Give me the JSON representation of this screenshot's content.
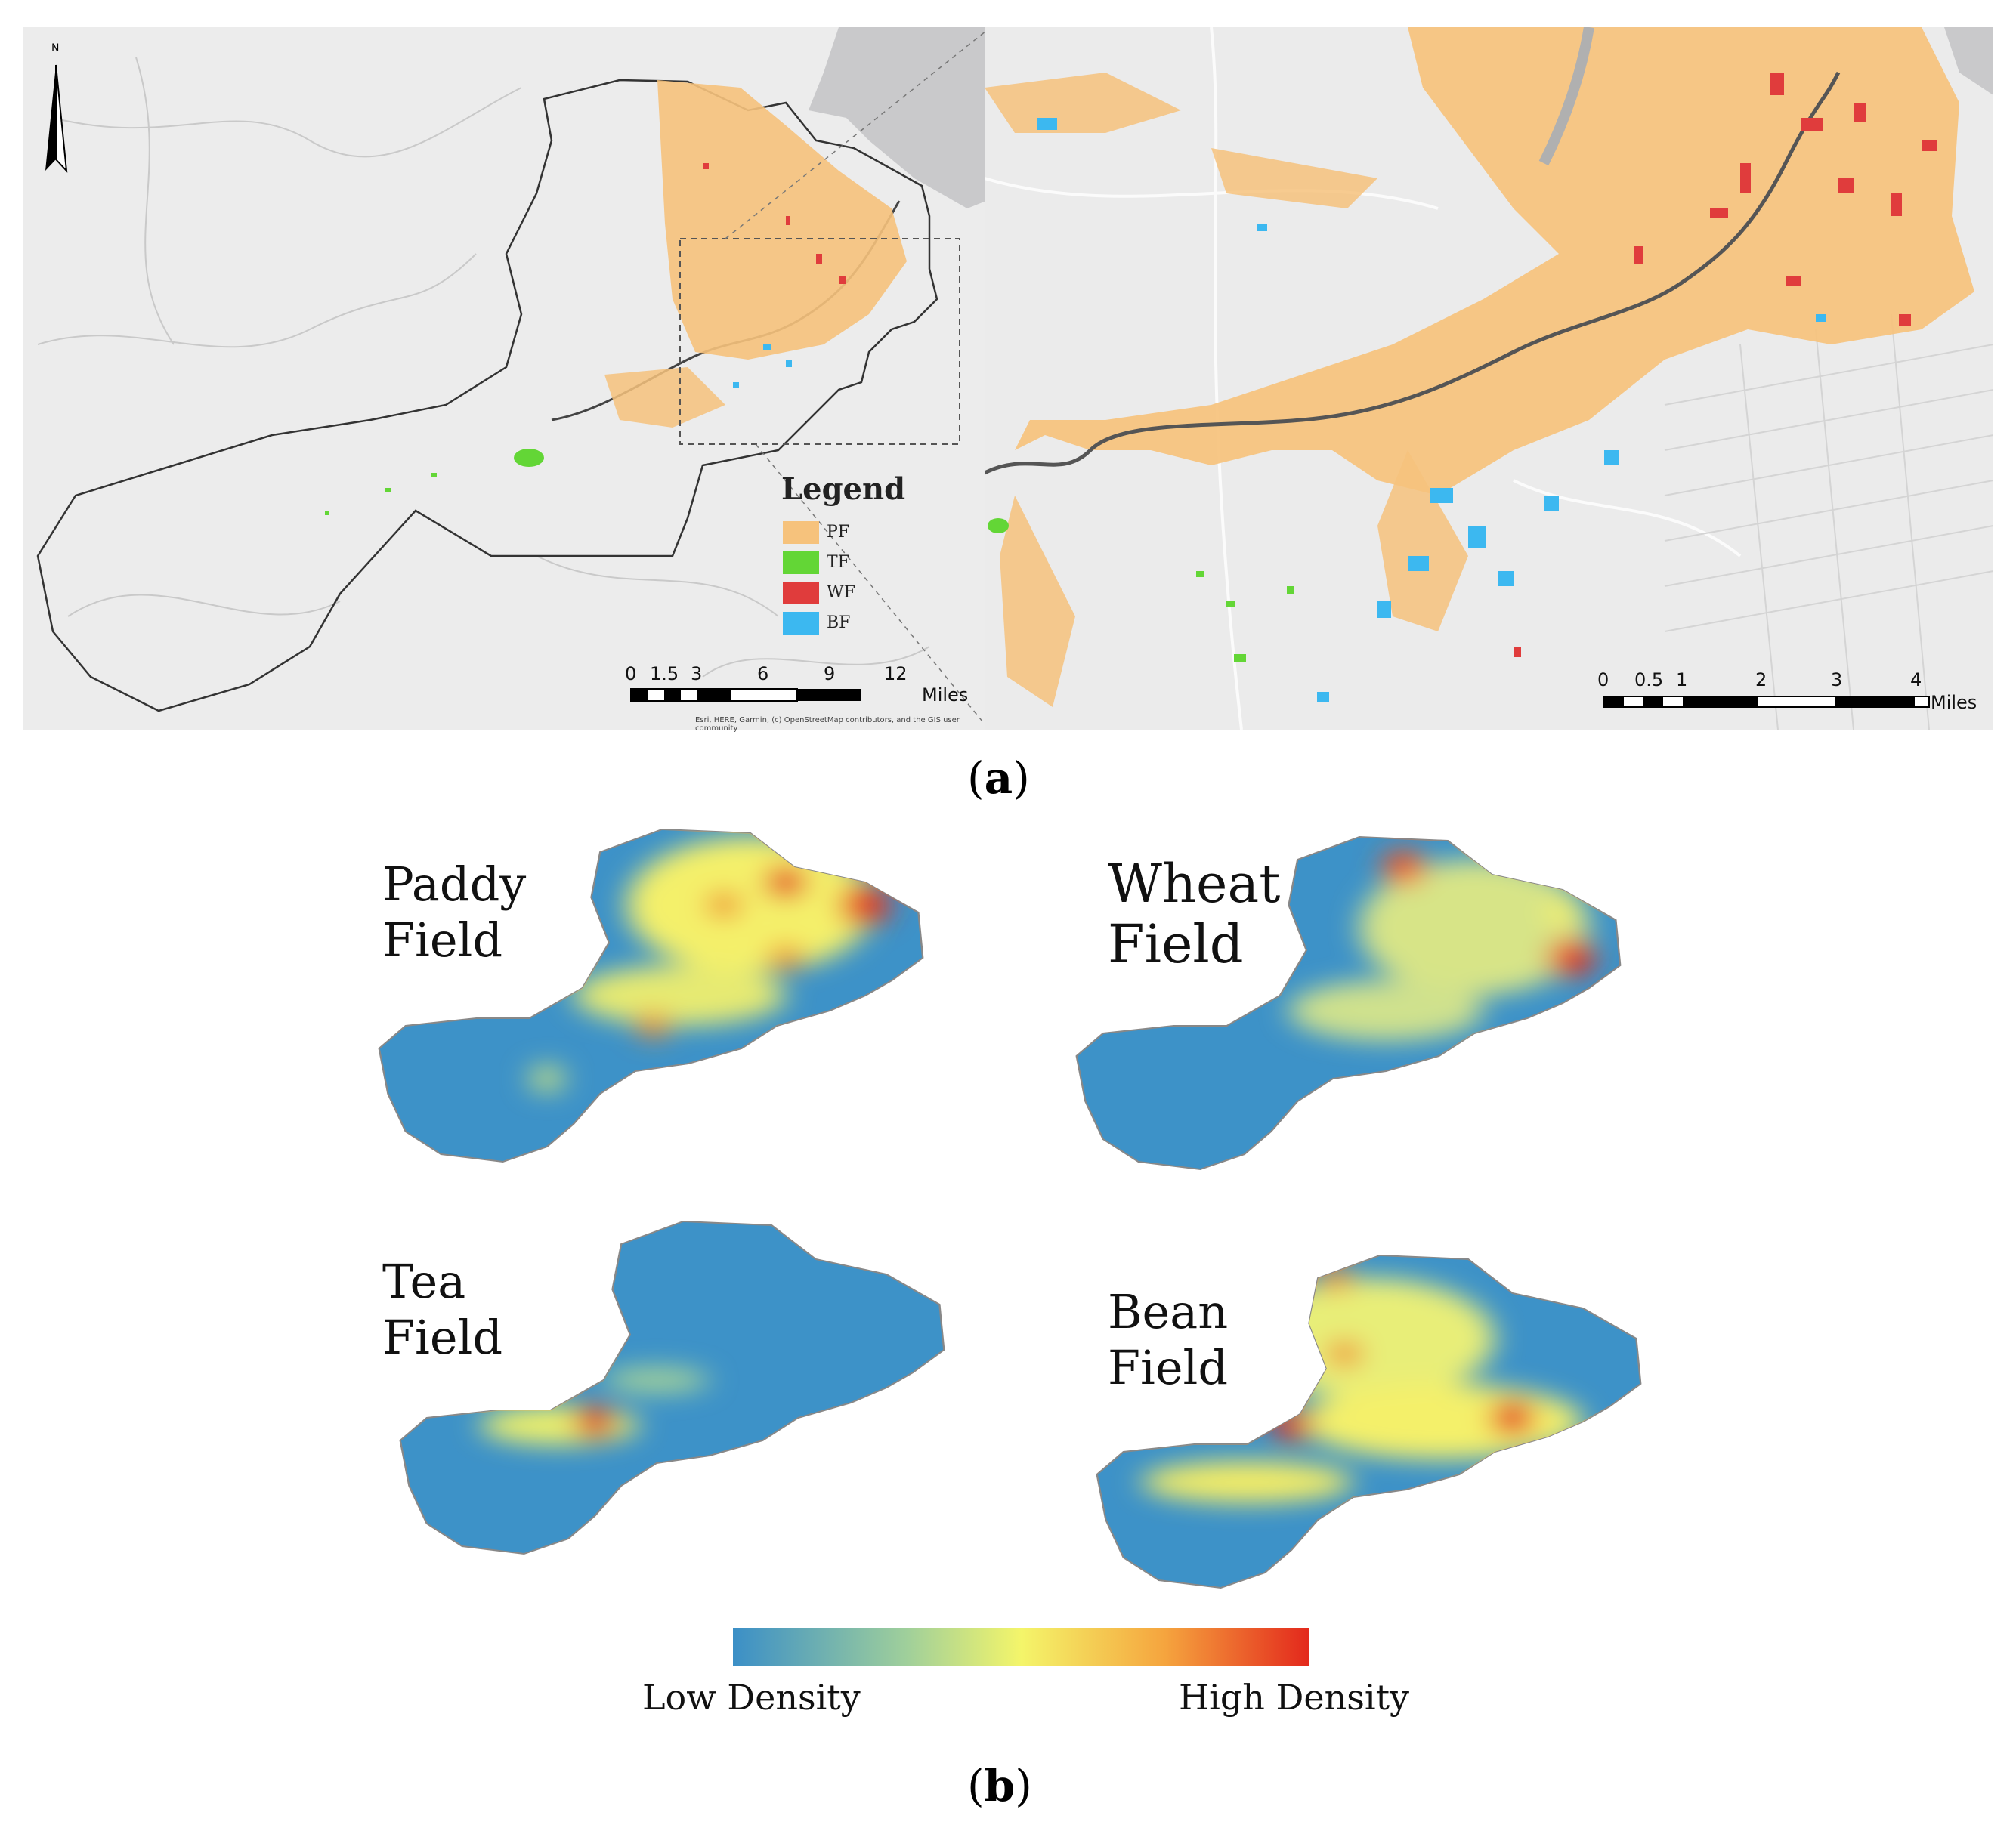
{
  "panel_a": {
    "caption": {
      "open": "(",
      "letter": "a",
      "close": ")"
    },
    "legend": {
      "title": "Legend",
      "items": [
        {
          "code": "PF",
          "color": "#f6c27c"
        },
        {
          "code": "TF",
          "color": "#63d636"
        },
        {
          "code": "WF",
          "color": "#e03c3c"
        },
        {
          "code": "BF",
          "color": "#3cb8f0"
        }
      ]
    },
    "north_label": "N",
    "scale_left": {
      "ticks": [
        "0",
        "1.5",
        "3",
        "6",
        "9",
        "12"
      ],
      "unit": "Miles"
    },
    "scale_right": {
      "ticks": [
        "0",
        "0.5",
        "1",
        "2",
        "3",
        "4"
      ],
      "unit": "Miles"
    },
    "attribution": "Esri, HERE, Garmin, (c) OpenStreetMap contributors, and the GIS user community"
  },
  "panel_b": {
    "caption": {
      "open": "(",
      "letter": "b",
      "close": ")"
    },
    "heatmaps": [
      {
        "line1": "Paddy",
        "line2": "Field"
      },
      {
        "line1": "Wheat",
        "line2": "Field"
      },
      {
        "line1": "Tea",
        "line2": "Field"
      },
      {
        "line1": "Bean",
        "line2": "Field"
      }
    ],
    "colorbar": {
      "low_label": "Low Density",
      "high_label": "High Density",
      "colors": [
        "#3b8fc7",
        "#9fcf9b",
        "#f4f56a",
        "#f5a43e",
        "#e3281c"
      ]
    }
  }
}
